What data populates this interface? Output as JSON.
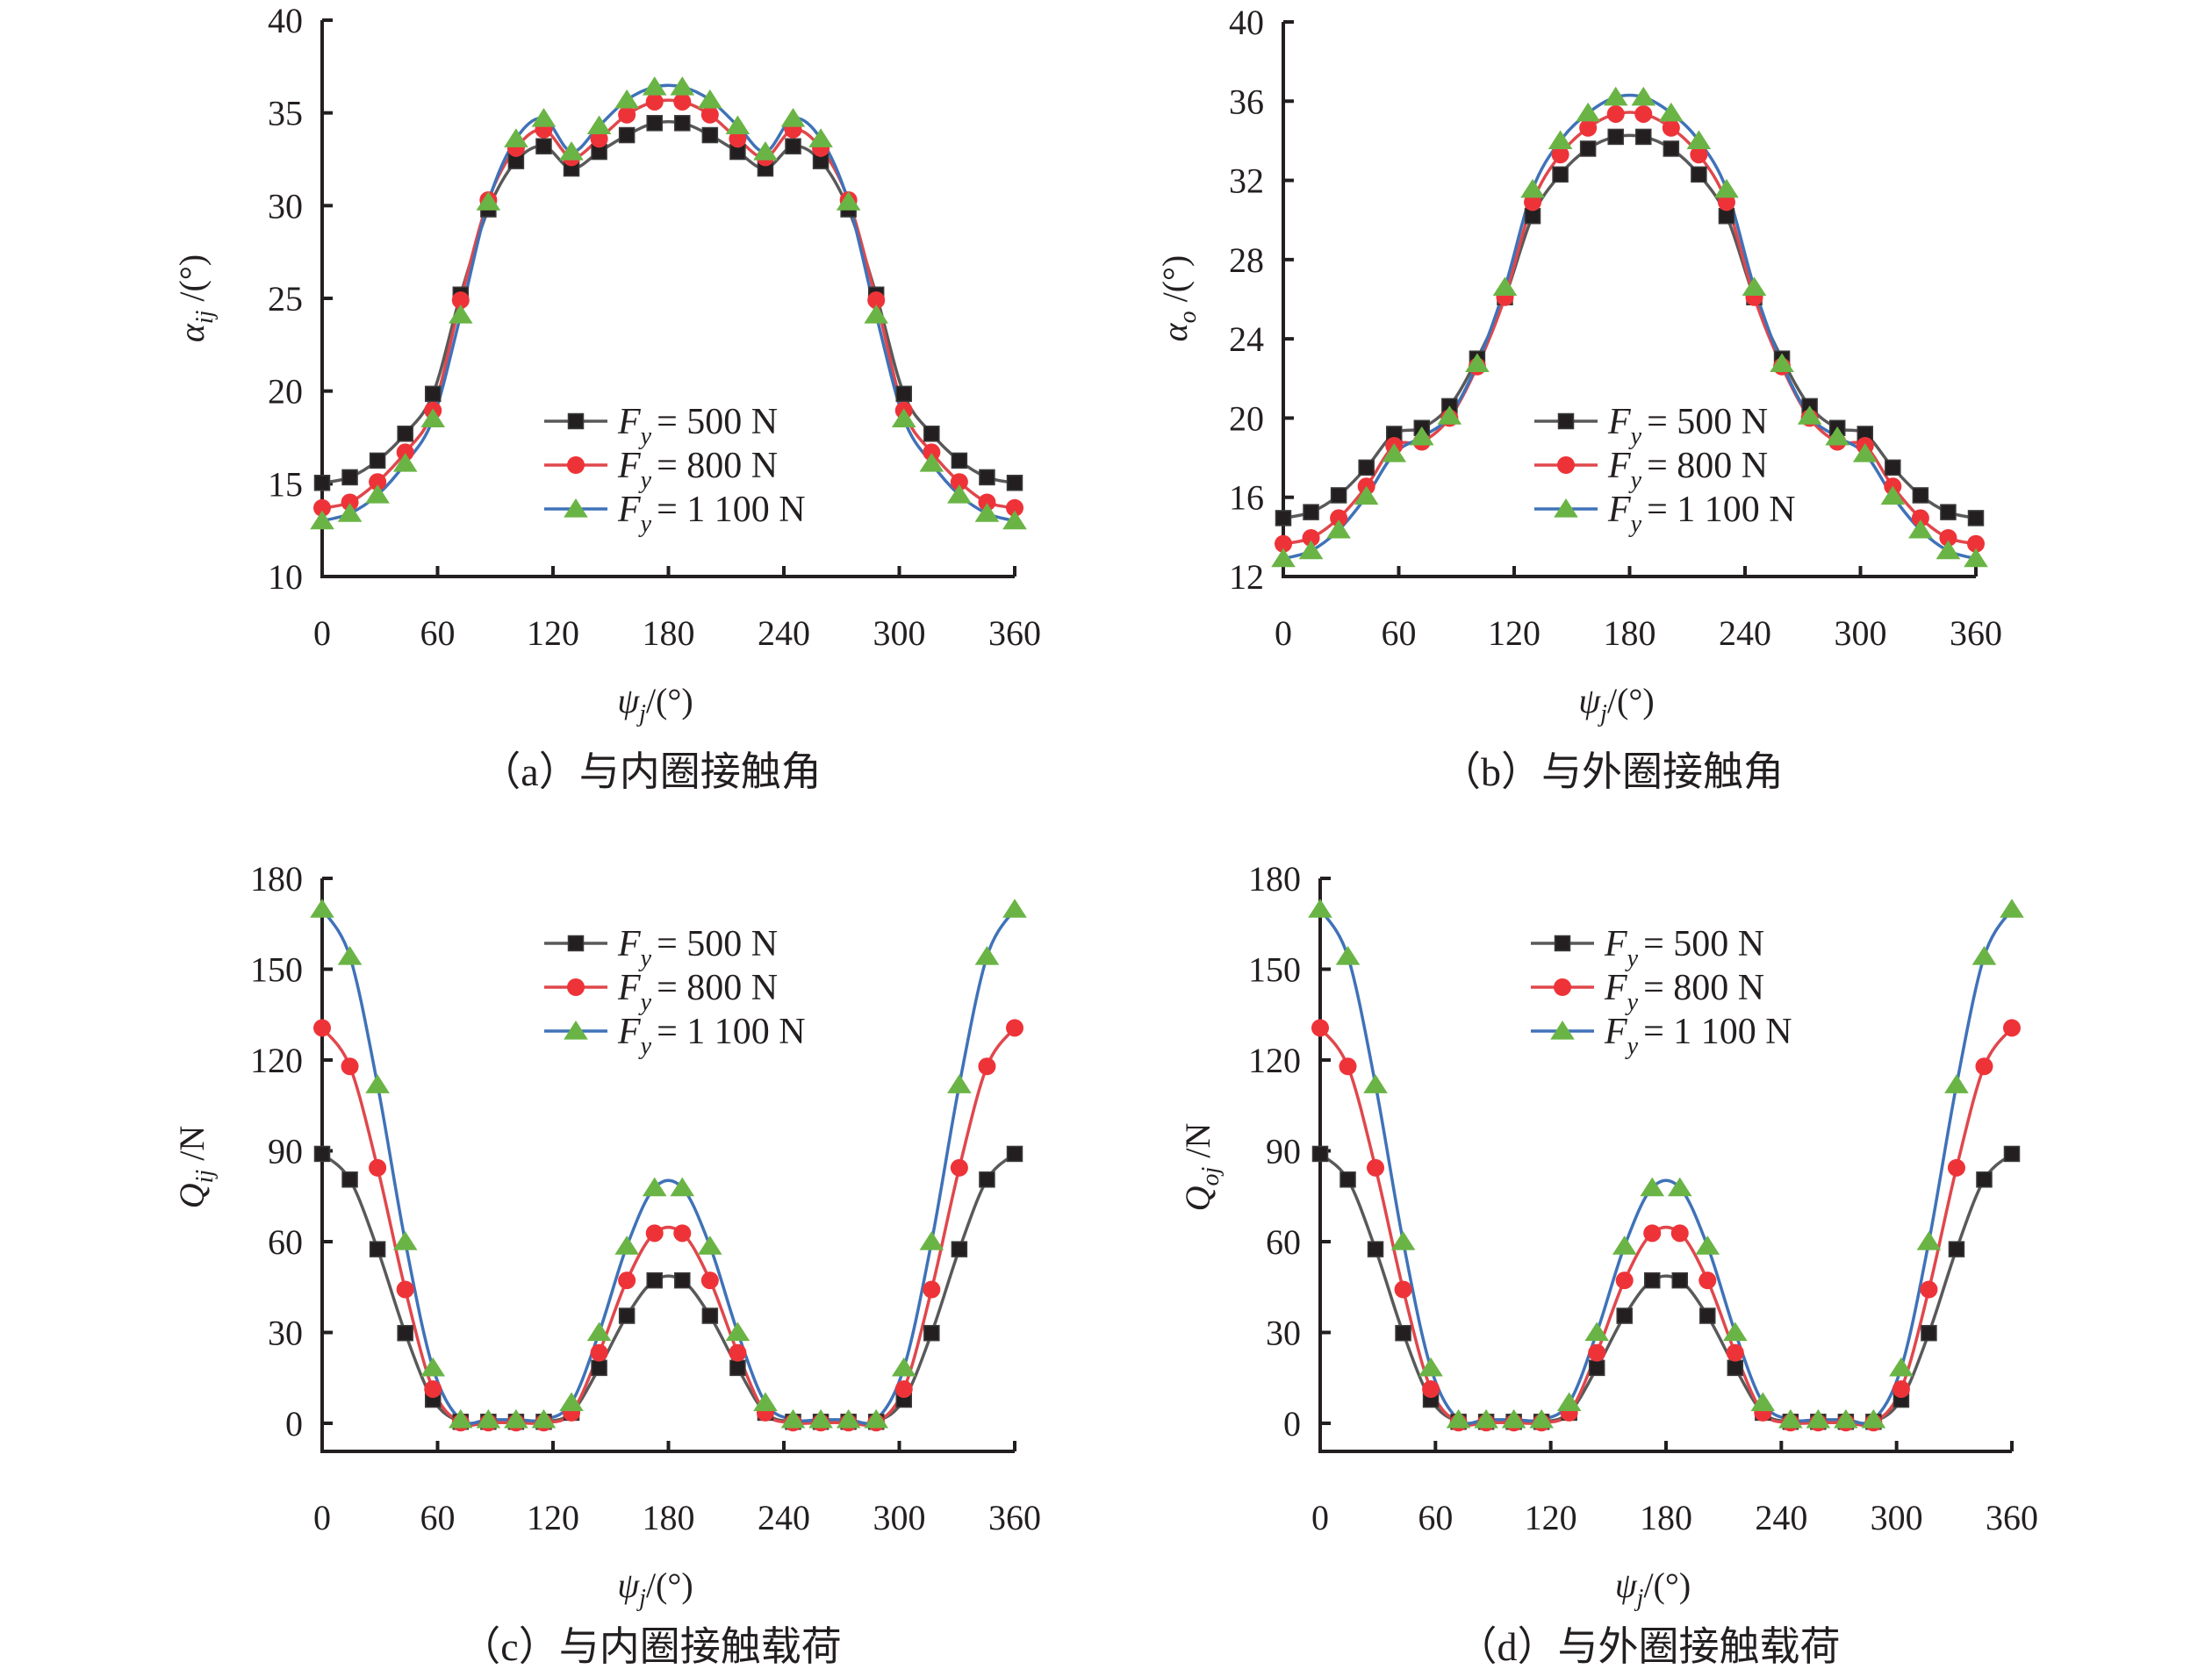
{
  "series_styles": [
    {
      "name": "Fy = 500 N",
      "var": "F",
      "sub": "y",
      "value_text": "= 500 N",
      "marker": "square",
      "line_color": "#595959",
      "marker_color": "#231f20"
    },
    {
      "name": "Fy = 800 N",
      "var": "F",
      "sub": "y",
      "value_text": "= 800 N",
      "marker": "circle",
      "line_color": "#e0474c",
      "marker_color": "#ee3338"
    },
    {
      "name": "Fy = 1 100 N",
      "var": "F",
      "sub": "y",
      "value_text": "= 1 100 N",
      "marker": "triangle",
      "line_color": "#3f72b8",
      "marker_color": "#6ab445"
    }
  ],
  "chart_data": [
    {
      "id": "a",
      "type": "line",
      "caption": "（a）与内圈接触角",
      "xlabel": "ψj/(°)",
      "xlabel_var": "ψ",
      "xlabel_sub": "j",
      "xlabel_unit": "/(°)",
      "ylabel": "αij /(°)",
      "ylabel_var": "α",
      "ylabel_sub": "ij",
      "ylabel_unit": " /(°)",
      "xlim": [
        0,
        360
      ],
      "ylim": [
        10,
        40
      ],
      "xticks": [
        0,
        60,
        120,
        180,
        240,
        300,
        360
      ],
      "yticks": [
        10,
        15,
        20,
        25,
        30,
        35,
        40
      ],
      "grid": false,
      "legend_position": "bottom-center",
      "x": [
        0,
        14.4,
        28.8,
        43.2,
        57.6,
        72,
        86.4,
        100.8,
        115.2,
        129.6,
        144,
        158.4,
        172.8,
        187.2,
        201.6,
        216,
        230.4,
        244.8,
        259.2,
        273.6,
        288,
        302.4,
        316.8,
        331.2,
        345.6,
        360
      ],
      "series": [
        {
          "name": "Fy = 500 N",
          "values": [
            15.05,
            15.35,
            16.25,
            17.7,
            19.85,
            25.2,
            29.8,
            32.4,
            33.2,
            32.0,
            32.9,
            33.8,
            34.45,
            34.45,
            33.8,
            32.9,
            32.0,
            33.2,
            32.4,
            29.8,
            25.2,
            19.85,
            17.7,
            16.25,
            15.35,
            15.05
          ]
        },
        {
          "name": "Fy = 800 N",
          "values": [
            13.7,
            14.0,
            15.1,
            16.7,
            18.95,
            24.9,
            30.3,
            33.1,
            34.1,
            32.6,
            33.6,
            34.9,
            35.6,
            35.6,
            34.9,
            33.6,
            32.6,
            34.1,
            33.1,
            30.3,
            24.9,
            18.95,
            16.7,
            15.1,
            14.0,
            13.7
          ]
        },
        {
          "name": "Fy = 1 100 N",
          "values": [
            13.0,
            13.4,
            14.4,
            16.1,
            18.5,
            24.1,
            30.2,
            33.6,
            34.7,
            32.9,
            34.3,
            35.7,
            36.4,
            36.4,
            35.7,
            34.3,
            32.9,
            34.7,
            33.6,
            30.2,
            24.1,
            18.5,
            16.1,
            14.4,
            13.4,
            13.0
          ]
        }
      ]
    },
    {
      "id": "b",
      "type": "line",
      "caption": "（b）与外圈接触角",
      "xlabel": "ψj/(°)",
      "xlabel_var": "ψ",
      "xlabel_sub": "j",
      "xlabel_unit": "/(°)",
      "ylabel": "αo /(°)",
      "ylabel_var": "α",
      "ylabel_sub": "o",
      "ylabel_unit": " /(°)",
      "xlim": [
        0,
        360
      ],
      "ylim": [
        12,
        40
      ],
      "xticks": [
        0,
        60,
        120,
        180,
        240,
        300,
        360
      ],
      "yticks": [
        12,
        16,
        20,
        24,
        28,
        32,
        36,
        40
      ],
      "grid": false,
      "legend_position": "bottom-center",
      "x": [
        0,
        14.4,
        28.8,
        43.2,
        57.6,
        72,
        86.4,
        100.8,
        115.2,
        129.6,
        144,
        158.4,
        172.8,
        187.2,
        201.6,
        216,
        230.4,
        244.8,
        259.2,
        273.6,
        288,
        302.4,
        316.8,
        331.2,
        345.6,
        360
      ],
      "series": [
        {
          "name": "Fy = 500 N",
          "values": [
            14.95,
            15.25,
            16.1,
            17.5,
            19.2,
            19.5,
            20.6,
            23.0,
            26.1,
            30.2,
            32.3,
            33.6,
            34.2,
            34.2,
            33.6,
            32.3,
            30.2,
            26.1,
            23.0,
            20.6,
            19.5,
            19.2,
            17.5,
            16.1,
            15.25,
            14.95
          ]
        },
        {
          "name": "Fy = 800 N",
          "values": [
            13.65,
            13.95,
            14.95,
            16.55,
            18.6,
            18.8,
            20.0,
            22.6,
            26.1,
            30.9,
            33.3,
            34.65,
            35.35,
            35.35,
            34.65,
            33.3,
            30.9,
            26.1,
            22.6,
            20.0,
            18.8,
            18.6,
            16.55,
            14.95,
            13.95,
            13.65
          ]
        },
        {
          "name": "Fy = 1 100 N",
          "values": [
            12.9,
            13.3,
            14.35,
            16.05,
            18.2,
            19.05,
            20.1,
            22.75,
            26.6,
            31.55,
            34.0,
            35.4,
            36.2,
            36.2,
            35.4,
            34.0,
            31.55,
            26.6,
            22.75,
            20.1,
            19.05,
            18.2,
            16.05,
            14.35,
            13.3,
            12.9
          ]
        }
      ]
    },
    {
      "id": "c",
      "type": "line",
      "caption": "（c）与内圈接触载荷",
      "xlabel": "ψj/(°)",
      "xlabel_var": "ψ",
      "xlabel_sub": "j",
      "xlabel_unit": "/(°)",
      "ylabel": "Qij /N",
      "ylabel_var": "Q",
      "ylabel_sub": "ij",
      "ylabel_unit": " /N",
      "xlim": [
        0,
        360
      ],
      "ylim": [
        -10,
        180
      ],
      "xticks": [
        0,
        60,
        120,
        180,
        240,
        300,
        360
      ],
      "yticks": [
        0,
        30,
        60,
        90,
        120,
        150,
        180
      ],
      "grid": false,
      "legend_position": "top-center",
      "x": [
        0,
        14.4,
        28.8,
        43.2,
        57.6,
        72,
        86.4,
        100.8,
        115.2,
        129.6,
        144,
        158.4,
        172.8,
        187.2,
        201.6,
        216,
        230.4,
        244.8,
        259.2,
        273.6,
        288,
        302.4,
        316.8,
        331.2,
        345.6,
        360
      ],
      "series": [
        {
          "name": "Fy = 500 N",
          "values": [
            89,
            80.5,
            57.5,
            29.8,
            7.8,
            0.5,
            0.5,
            0.5,
            0.5,
            3.5,
            18.3,
            35.5,
            47.2,
            47.2,
            35.5,
            18.3,
            3.5,
            0.5,
            0.5,
            0.5,
            0.5,
            7.8,
            29.8,
            57.5,
            80.5,
            89
          ]
        },
        {
          "name": "Fy = 800 N",
          "values": [
            130.6,
            117.9,
            84.4,
            44.2,
            11.3,
            0.2,
            0.2,
            0.2,
            0.2,
            3.5,
            23.3,
            47.2,
            62.8,
            62.8,
            47.2,
            23.3,
            3.5,
            0.2,
            0.2,
            0.2,
            0.2,
            11.3,
            44.2,
            84.4,
            117.9,
            130.6
          ]
        },
        {
          "name": "Fy = 1 100 N",
          "values": [
            169.8,
            154.2,
            111.8,
            60.0,
            18.3,
            1.2,
            1.2,
            1.2,
            1.2,
            6.8,
            30.0,
            58.5,
            77.8,
            77.8,
            58.5,
            30.0,
            6.8,
            1.2,
            1.2,
            1.2,
            1.2,
            18.3,
            60.0,
            111.8,
            154.2,
            169.8
          ]
        }
      ]
    },
    {
      "id": "d",
      "type": "line",
      "caption": "（d）与外圈接触载荷",
      "xlabel": "ψj/(°)",
      "xlabel_var": "ψ",
      "xlabel_sub": "j",
      "xlabel_unit": "/(°)",
      "ylabel": "Qoj /N",
      "ylabel_var": "Q",
      "ylabel_sub": "oj",
      "ylabel_unit": " /N",
      "xlim": [
        0,
        360
      ],
      "ylim": [
        -10,
        180
      ],
      "xticks": [
        0,
        60,
        120,
        180,
        240,
        300,
        360
      ],
      "yticks": [
        0,
        30,
        60,
        90,
        120,
        150,
        180
      ],
      "grid": false,
      "legend_position": "top-center",
      "x": [
        0,
        14.4,
        28.8,
        43.2,
        57.6,
        72,
        86.4,
        100.8,
        115.2,
        129.6,
        144,
        158.4,
        172.8,
        187.2,
        201.6,
        216,
        230.4,
        244.8,
        259.2,
        273.6,
        288,
        302.4,
        316.8,
        331.2,
        345.6,
        360
      ],
      "series": [
        {
          "name": "Fy = 500 N",
          "values": [
            89,
            80.5,
            57.5,
            29.8,
            7.8,
            0.5,
            0.5,
            0.5,
            0.5,
            3.5,
            18.3,
            35.5,
            47.2,
            47.2,
            35.5,
            18.3,
            3.5,
            0.5,
            0.5,
            0.5,
            0.5,
            7.8,
            29.8,
            57.5,
            80.5,
            89
          ]
        },
        {
          "name": "Fy = 800 N",
          "values": [
            130.6,
            117.9,
            84.4,
            44.2,
            11.3,
            0.2,
            0.2,
            0.2,
            0.2,
            3.5,
            23.3,
            47.2,
            62.8,
            62.8,
            47.2,
            23.3,
            3.5,
            0.2,
            0.2,
            0.2,
            0.2,
            11.3,
            44.2,
            84.4,
            117.9,
            130.6
          ]
        },
        {
          "name": "Fy = 1 100 N",
          "values": [
            169.8,
            154.2,
            111.8,
            60.0,
            18.3,
            1.2,
            1.2,
            1.2,
            1.2,
            6.8,
            30.0,
            58.5,
            77.8,
            77.8,
            58.5,
            30.0,
            6.8,
            1.2,
            1.2,
            1.2,
            1.2,
            18.3,
            60.0,
            111.8,
            154.2,
            169.8
          ]
        }
      ]
    }
  ]
}
